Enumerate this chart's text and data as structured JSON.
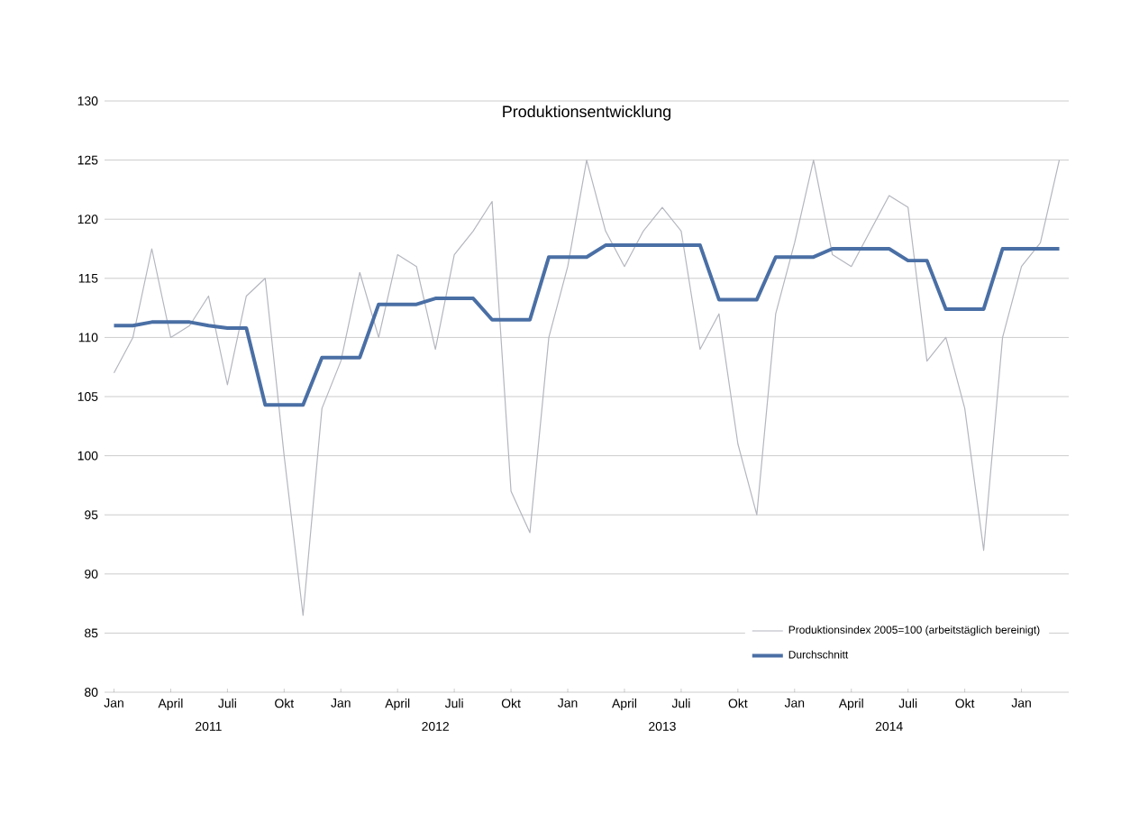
{
  "chart_data": {
    "type": "line",
    "title": "Produktionsentwicklung",
    "categories": [
      "Jan",
      null,
      null,
      "April",
      null,
      null,
      "Juli",
      null,
      null,
      "Okt",
      null,
      null,
      "Jan",
      null,
      null,
      "April",
      null,
      null,
      "Juli",
      null,
      null,
      "Okt",
      null,
      null,
      "Jan",
      null,
      null,
      "April",
      null,
      null,
      "Juli",
      null,
      null,
      "Okt",
      null,
      null,
      "Jan",
      null,
      null,
      "April",
      null,
      null,
      "Juli",
      null,
      null,
      "Okt",
      null,
      null,
      "Jan",
      null,
      null
    ],
    "series": [
      {
        "name": "Produktionsindex 2005=100 (arbeitstäglich bereinigt)",
        "color": "#b4b6bf",
        "values": [
          107,
          110,
          117.5,
          110,
          111,
          113.5,
          106,
          113.5,
          115,
          100,
          86.5,
          104,
          108,
          115.5,
          110,
          117,
          116,
          109,
          117,
          119,
          121.5,
          97,
          93.5,
          110,
          116,
          125,
          119,
          116,
          119,
          121,
          119,
          109,
          112,
          101,
          95,
          112,
          118,
          125,
          117,
          116,
          119,
          122,
          121,
          108,
          110,
          104,
          92,
          110,
          116,
          118,
          125
        ]
      },
      {
        "name": "Durchschnitt",
        "color": "#4a6fa5",
        "values": [
          111,
          111,
          111.3,
          111.3,
          111.3,
          111,
          110.8,
          110.8,
          104.3,
          104.3,
          104.3,
          108.3,
          108.3,
          108.3,
          112.8,
          112.8,
          112.8,
          113.3,
          113.3,
          113.3,
          111.5,
          111.5,
          111.5,
          116.8,
          116.8,
          116.8,
          117.8,
          117.8,
          117.8,
          117.8,
          117.8,
          117.8,
          113.2,
          113.2,
          113.2,
          116.8,
          116.8,
          116.8,
          117.5,
          117.5,
          117.5,
          117.5,
          116.5,
          116.5,
          112.4,
          112.4,
          112.4,
          117.5,
          117.5,
          117.5,
          117.5
        ]
      }
    ],
    "ylim": [
      80,
      130
    ],
    "yticks": [
      80,
      85,
      90,
      95,
      100,
      105,
      110,
      115,
      120,
      125,
      130
    ],
    "grid": "y",
    "legend": "bottom right",
    "annotations": [
      "2011",
      "2012",
      "2013",
      "2014"
    ]
  }
}
